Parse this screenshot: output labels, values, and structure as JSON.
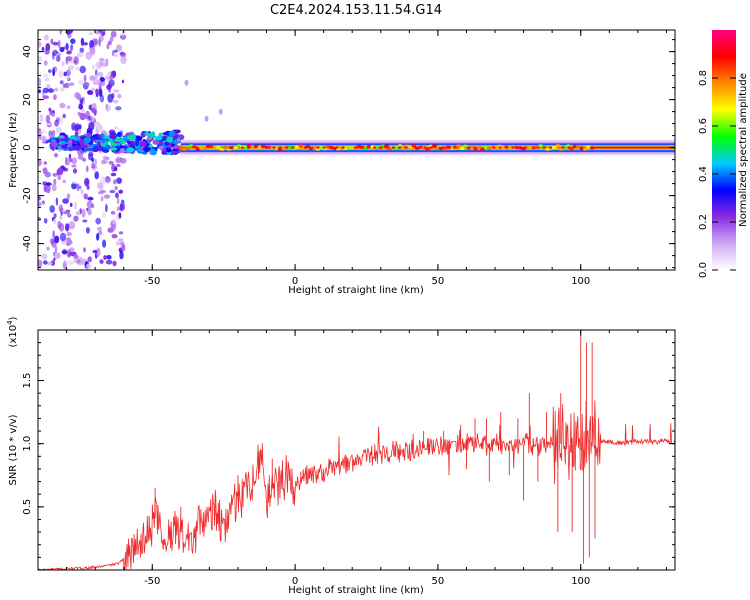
{
  "title": "C2E4.2024.153.11.54.G14",
  "colors": {
    "snr_line": "#ee2b2b",
    "axis": "#000000"
  },
  "chart_data": [
    {
      "type": "heatmap",
      "name": "spectrogram",
      "xlabel": "Height of straight line (km)",
      "ylabel": "Frequency (Hz)",
      "xlim": [
        -90,
        133
      ],
      "ylim": [
        -51,
        49
      ],
      "x_ticks": [
        -50,
        0,
        50,
        100
      ],
      "y_ticks": [
        -40,
        -20,
        0,
        20,
        40
      ],
      "colorbar": {
        "label": "Normalized spectral amplitude",
        "range": [
          0.0,
          1.0
        ],
        "ticks": [
          "0.0",
          "0.2",
          "0.4",
          "0.6",
          "0.8"
        ],
        "colormap": [
          "#ffffff",
          "#cfa8f5",
          "#8a2be2",
          "#0000ff",
          "#00ccff",
          "#00ff00",
          "#ffff00",
          "#ff8800",
          "#ff0000",
          "#ff0080"
        ]
      },
      "features": [
        {
          "region": "noise scatter",
          "x_range": [
            -90,
            -60
          ],
          "freq_range": [
            -50,
            49
          ],
          "amplitude": "0.1-0.3"
        },
        {
          "region": "noisy carrier band",
          "x_range": [
            -85,
            -40
          ],
          "freq_center": 2,
          "freq_spread": 8,
          "amplitude": "0.3-0.6"
        },
        {
          "region": "stable carrier line",
          "x_range": [
            -40,
            133
          ],
          "freq_center": 0,
          "freq_spread": 3,
          "amplitude": "0.7-1.0"
        }
      ]
    },
    {
      "type": "line",
      "name": "snr",
      "xlabel": "Height of straight line (km)",
      "ylabel": "SNR (10 * v/v)",
      "y_scale_label": "(x10",
      "y_scale_exponent": "4",
      "y_scale_close": ")",
      "xlim": [
        -90,
        133
      ],
      "ylim": [
        0,
        1.9
      ],
      "x_ticks": [
        -50,
        0,
        50,
        100
      ],
      "y_ticks": [
        "0.5",
        "1.0",
        "1.5"
      ],
      "series": [
        {
          "color": "#ee2b2b",
          "points": [
            [
              -90,
              0.0
            ],
            [
              -80,
              0.01
            ],
            [
              -70,
              0.02
            ],
            [
              -62,
              0.05
            ],
            [
              -58,
              0.12
            ],
            [
              -55,
              0.2
            ],
            [
              -52,
              0.3
            ],
            [
              -48,
              0.45
            ],
            [
              -45,
              0.2
            ],
            [
              -42,
              0.35
            ],
            [
              -38,
              0.25
            ],
            [
              -35,
              0.3
            ],
            [
              -30,
              0.45
            ],
            [
              -25,
              0.4
            ],
            [
              -20,
              0.55
            ],
            [
              -15,
              0.7
            ],
            [
              -12,
              0.9
            ],
            [
              -10,
              0.6
            ],
            [
              -5,
              0.7
            ],
            [
              0,
              0.72
            ],
            [
              5,
              0.75
            ],
            [
              10,
              0.78
            ],
            [
              15,
              0.82
            ],
            [
              20,
              0.86
            ],
            [
              25,
              0.9
            ],
            [
              30,
              0.9
            ],
            [
              35,
              0.93
            ],
            [
              40,
              0.95
            ],
            [
              45,
              0.97
            ],
            [
              50,
              0.98
            ],
            [
              55,
              0.99
            ],
            [
              60,
              1.0
            ],
            [
              65,
              1.0
            ],
            [
              70,
              0.99
            ],
            [
              75,
              0.98
            ],
            [
              80,
              0.99
            ],
            [
              85,
              1.0
            ],
            [
              90,
              1.0
            ],
            [
              95,
              1.0
            ],
            [
              100,
              0.95
            ],
            [
              103,
              0.97
            ],
            [
              106,
              1.0
            ],
            [
              110,
              1.02
            ],
            [
              115,
              1.0
            ],
            [
              120,
              1.02
            ],
            [
              125,
              1.01
            ],
            [
              130,
              1.02
            ],
            [
              133,
              1.01
            ]
          ],
          "peaks": [
            [
              -49,
              0.65
            ],
            [
              -40,
              0.5
            ],
            [
              -28,
              0.55
            ],
            [
              -20,
              0.75
            ],
            [
              -12,
              0.95
            ],
            [
              -8,
              0.88
            ],
            [
              2,
              0.78
            ],
            [
              10,
              0.75
            ],
            [
              45,
              1.1
            ],
            [
              52,
              1.1
            ],
            [
              58,
              1.15
            ],
            [
              63,
              1.2
            ],
            [
              67,
              1.2
            ],
            [
              72,
              1.25
            ],
            [
              78,
              1.2
            ],
            [
              82,
              1.4
            ],
            [
              88,
              1.25
            ],
            [
              93,
              1.4
            ],
            [
              100,
              1.85
            ],
            [
              102,
              1.8
            ],
            [
              104,
              1.8
            ]
          ],
          "dips": [
            [
              60,
              0.8
            ],
            [
              68,
              0.7
            ],
            [
              75,
              0.75
            ],
            [
              80,
              0.55
            ],
            [
              85,
              0.7
            ],
            [
              92,
              0.3
            ],
            [
              97,
              0.3
            ],
            [
              101,
              0.05
            ],
            [
              103,
              0.1
            ],
            [
              105,
              0.25
            ]
          ]
        }
      ]
    }
  ]
}
